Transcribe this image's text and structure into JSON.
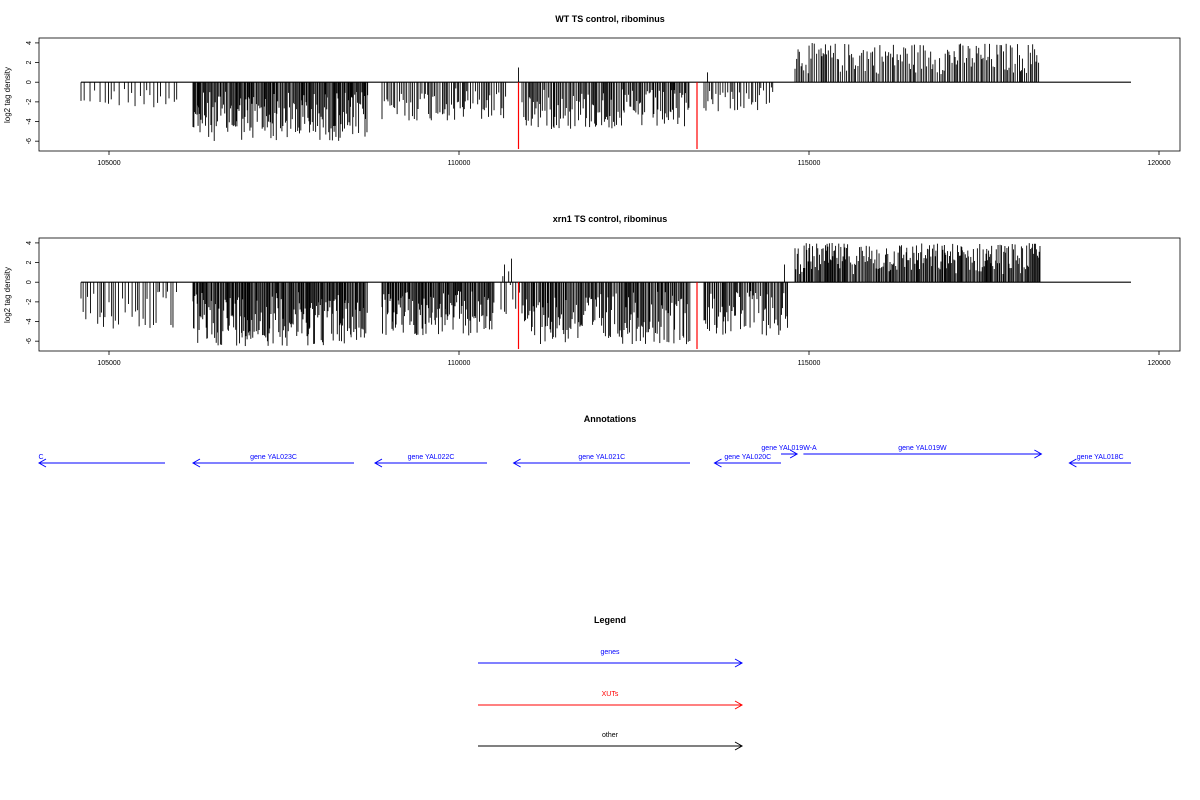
{
  "panels": [
    {
      "title": "WT TS control, ribominus",
      "ylabel": "log2 tag density",
      "yticks": [
        4,
        2,
        0,
        -2,
        -4,
        -6
      ],
      "xticks": [
        105000,
        110000,
        115000,
        120000
      ],
      "xlim": [
        104000,
        120300
      ],
      "ylim": [
        -7,
        4.5
      ],
      "baseline": [
        104600,
        119600
      ]
    },
    {
      "title": "xrn1 TS control, ribominus",
      "ylabel": "log2 tag density",
      "yticks": [
        4,
        2,
        0,
        -2,
        -4,
        -6
      ],
      "xticks": [
        105000,
        110000,
        115000,
        120000
      ],
      "xlim": [
        104000,
        120300
      ],
      "ylim": [
        -7,
        4.5
      ],
      "baseline": [
        104600,
        119600
      ]
    }
  ],
  "chart_data": [
    {
      "type": "bar",
      "title": "WT TS control, ribominus",
      "ylabel": "log2 tag density",
      "ylim": [
        -7,
        4.5
      ],
      "xlim": [
        104000,
        120300
      ],
      "xticks": [
        105000,
        110000,
        115000,
        120000
      ],
      "yticks": [
        4,
        2,
        0,
        -2,
        -4,
        -6
      ],
      "grid": false,
      "density_regions": [
        {
          "x": [
            104600,
            106000
          ],
          "max": 0,
          "min": -2.6,
          "density": 0.25
        },
        {
          "x": [
            106200,
            108700
          ],
          "max": 0,
          "min": -6.0,
          "density": 1.0
        },
        {
          "x": [
            108900,
            110700
          ],
          "max": 0,
          "min": -4.0,
          "density": 0.55
        },
        {
          "x": [
            110900,
            113300
          ],
          "max": 0,
          "min": -4.8,
          "density": 0.75
        },
        {
          "x": [
            113500,
            114500
          ],
          "max": 0,
          "min": -3.0,
          "density": 0.45
        },
        {
          "x": [
            114800,
            118300
          ],
          "max": 4.0,
          "min": 0,
          "density": 0.6
        }
      ],
      "spikes": [
        {
          "x": 110850,
          "y": 1.5
        },
        {
          "x": 113550,
          "y": 1.0
        }
      ],
      "red_markers": [
        {
          "x": 110850,
          "y": -6.8
        },
        {
          "x": 113400,
          "y": -6.8
        }
      ]
    },
    {
      "type": "bar",
      "title": "xrn1 TS control, ribominus",
      "ylabel": "log2 tag density",
      "ylim": [
        -7,
        4.5
      ],
      "xlim": [
        104000,
        120300
      ],
      "xticks": [
        105000,
        110000,
        115000,
        120000
      ],
      "yticks": [
        4,
        2,
        0,
        -2,
        -4,
        -6
      ],
      "grid": false,
      "density_regions": [
        {
          "x": [
            104600,
            106000
          ],
          "max": 0,
          "min": -5.0,
          "density": 0.35
        },
        {
          "x": [
            106200,
            108700
          ],
          "max": 0,
          "min": -6.5,
          "density": 1.0
        },
        {
          "x": [
            108900,
            110500
          ],
          "max": 0,
          "min": -5.5,
          "density": 1.0
        },
        {
          "x": [
            110600,
            110900
          ],
          "max": 2.2,
          "min": -3.5,
          "density": 0.5
        },
        {
          "x": [
            110900,
            113300
          ],
          "max": 0,
          "min": -6.3,
          "density": 0.85
        },
        {
          "x": [
            113500,
            114700
          ],
          "max": 0,
          "min": -5.5,
          "density": 0.8
        },
        {
          "x": [
            114800,
            118300
          ],
          "max": 4.0,
          "min": 0,
          "density": 0.95
        }
      ],
      "spikes": [
        {
          "x": 110750,
          "y": 2.4
        },
        {
          "x": 110650,
          "y": 1.8
        },
        {
          "x": 114650,
          "y": 1.8
        }
      ],
      "red_markers": [
        {
          "x": 110850,
          "y": -6.8
        },
        {
          "x": 113400,
          "y": -6.8
        }
      ]
    }
  ],
  "annotations": {
    "title": "Annotations",
    "xlim": [
      104000,
      120300
    ],
    "genes": [
      {
        "label": "C",
        "start": 104000,
        "end": 105800,
        "strand": "-",
        "row": 0
      },
      {
        "label": "gene YAL023C",
        "start": 106200,
        "end": 108500,
        "strand": "-",
        "row": 0
      },
      {
        "label": "gene YAL022C",
        "start": 108800,
        "end": 110400,
        "strand": "-",
        "row": 0
      },
      {
        "label": "gene YAL021C",
        "start": 110780,
        "end": 113300,
        "strand": "-",
        "row": 0
      },
      {
        "label": "gene YAL020C",
        "start": 113650,
        "end": 114600,
        "strand": "-",
        "row": 0
      },
      {
        "label": "gene YAL019W-A",
        "start": 114600,
        "end": 114830,
        "strand": "+",
        "row": 1
      },
      {
        "label": "gene YAL019W",
        "start": 114920,
        "end": 118320,
        "strand": "+",
        "row": 1
      },
      {
        "label": "gene YAL018C",
        "start": 118720,
        "end": 119600,
        "strand": "-",
        "row": 0
      }
    ]
  },
  "legend": {
    "title": "Legend",
    "items": [
      {
        "label": "genes",
        "color": "#0000ff"
      },
      {
        "label": "XUTs",
        "color": "#ff0000"
      },
      {
        "label": "other",
        "color": "#000000"
      }
    ]
  }
}
